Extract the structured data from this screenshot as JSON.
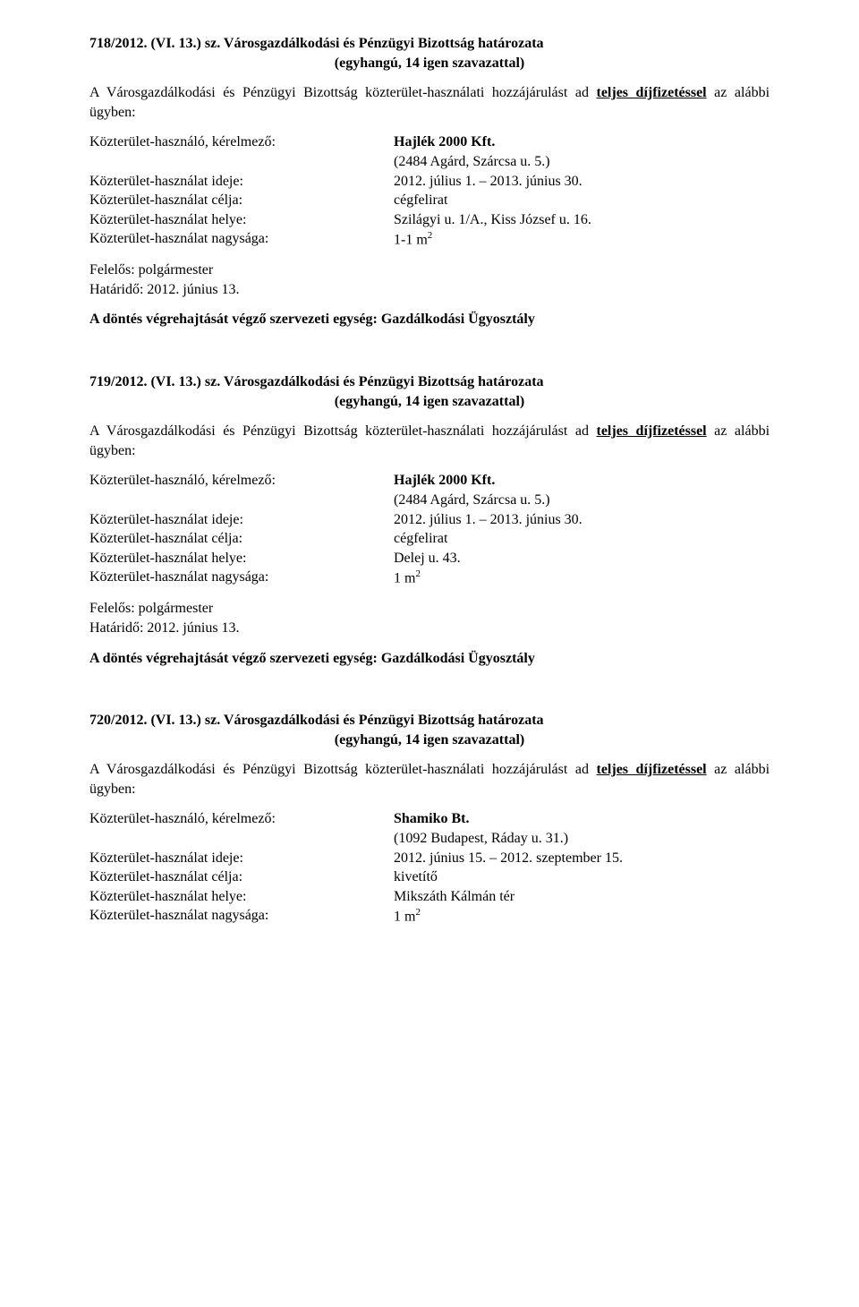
{
  "res718": {
    "header_line1_a": "718/2012. (VI. 13.) sz. Városgazdálkodási és Pénzügyi Bizottság határozata",
    "header_line2": "(egyhangú, 14 igen szavazattal)",
    "para_pre": "A Városgazdálkodási és Pénzügyi Bizottság közterület-használati hozzájárulást ad ",
    "para_bold": "teljes díjfizetéssel",
    "para_post": " az alábbi ügyben:",
    "rows": [
      {
        "label": "Közterület-használó, kérelmező:",
        "value_bold": "Hajlék 2000 Kft.",
        "value_rest": ""
      },
      {
        "label": "",
        "value_bold": "",
        "value_rest": "(2484 Agárd, Szárcsa u. 5.)"
      },
      {
        "label": "Közterület-használat ideje:",
        "value_bold": "",
        "value_rest": "2012. július 1. – 2013. június 30."
      },
      {
        "label": "Közterület-használat célja:",
        "value_bold": "",
        "value_rest": "cégfelirat"
      },
      {
        "label": "Közterület-használat helye:",
        "value_bold": "",
        "value_rest": "Szilágyi u. 1/A., Kiss József u. 16."
      },
      {
        "label": "Közterület-használat nagysága:",
        "value_bold": "",
        "value_rest": "1-1 m",
        "sup": "2"
      }
    ],
    "sign1": "Felelős: polgármester",
    "sign2": "Határidő: 2012. június 13.",
    "exec": "A döntés végrehajtását végző szervezeti egység: Gazdálkodási Ügyosztály"
  },
  "res719": {
    "header_line1_a": "719/2012. (VI. 13.) sz. Városgazdálkodási és Pénzügyi Bizottság határozata",
    "header_line2": "(egyhangú, 14 igen szavazattal)",
    "para_pre": "A Városgazdálkodási és Pénzügyi Bizottság közterület-használati hozzájárulást ad ",
    "para_bold": "teljes díjfizetéssel",
    "para_post": " az alábbi ügyben:",
    "rows": [
      {
        "label": "Közterület-használó, kérelmező:",
        "value_bold": "Hajlék 2000 Kft.",
        "value_rest": ""
      },
      {
        "label": "",
        "value_bold": "",
        "value_rest": "(2484 Agárd, Szárcsa u. 5.)"
      },
      {
        "label": "Közterület-használat ideje:",
        "value_bold": "",
        "value_rest": "2012. július 1. – 2013. június 30."
      },
      {
        "label": "Közterület-használat célja:",
        "value_bold": "",
        "value_rest": "cégfelirat"
      },
      {
        "label": "Közterület-használat helye:",
        "value_bold": "",
        "value_rest": "Delej u. 43."
      },
      {
        "label": "Közterület-használat nagysága:",
        "value_bold": "",
        "value_rest": "1 m",
        "sup": "2"
      }
    ],
    "sign1": "Felelős: polgármester",
    "sign2": "Határidő: 2012. június 13.",
    "exec": "A döntés végrehajtását végző szervezeti egység: Gazdálkodási Ügyosztály"
  },
  "res720": {
    "header_line1_a": "720/2012. (VI. 13.) sz. Városgazdálkodási és Pénzügyi Bizottság határozata",
    "header_line2": "(egyhangú, 14 igen szavazattal)",
    "para_pre": "A Városgazdálkodási és Pénzügyi Bizottság közterület-használati hozzájárulást ad ",
    "para_bold": "teljes díjfizetéssel",
    "para_post": " az alábbi ügyben:",
    "rows": [
      {
        "label": "Közterület-használó, kérelmező:",
        "value_bold": "Shamiko Bt.",
        "value_rest": ""
      },
      {
        "label": "",
        "value_bold": "",
        "value_rest": "(1092 Budapest, Ráday u. 31.)"
      },
      {
        "label": "Közterület-használat ideje:",
        "value_bold": "",
        "value_rest": "2012. június 15. – 2012. szeptember 15."
      },
      {
        "label": "Közterület-használat célja:",
        "value_bold": "",
        "value_rest": "kivetítő"
      },
      {
        "label": "Közterület-használat helye:",
        "value_bold": "",
        "value_rest": "Mikszáth Kálmán tér"
      },
      {
        "label": "Közterület-használat nagysága:",
        "value_bold": "",
        "value_rest": "1 m",
        "sup": "2"
      }
    ]
  }
}
